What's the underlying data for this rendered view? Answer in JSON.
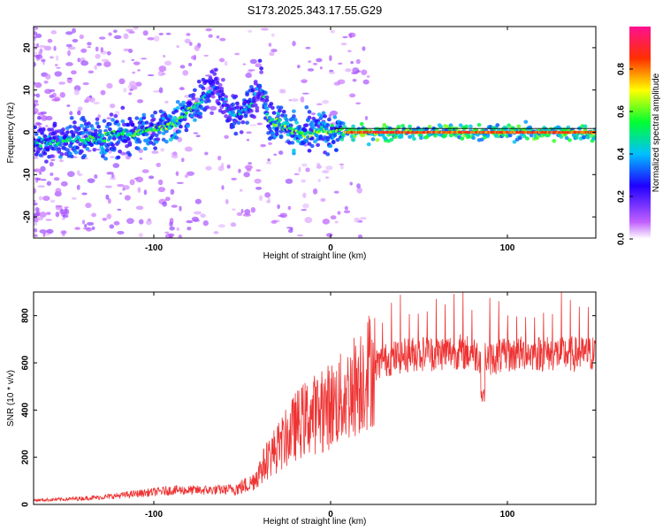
{
  "title": "S173.2025.343.17.55.G29",
  "chart_data": [
    {
      "type": "heatmap",
      "name": "spectrogram",
      "xlabel": "Height of straight line (km)",
      "ylabel": "Frequency (Hz)",
      "xlim": [
        -168,
        150
      ],
      "ylim": [
        -25,
        25
      ],
      "xticks": [
        -100,
        0,
        100
      ],
      "yticks": [
        -20,
        -10,
        0,
        10,
        20
      ],
      "colorbar": {
        "label": "Normalized spectral amplitude",
        "range": [
          0,
          1
        ],
        "ticks": [
          "0.0",
          "0.2",
          "0.4",
          "0.6",
          "0.8"
        ],
        "colors": [
          "#ffffff",
          "#c060ff",
          "#2000ff",
          "#00c0ff",
          "#00ff30",
          "#ffff00",
          "#ff3000",
          "#ff1090"
        ]
      },
      "ridge": [
        {
          "x": -160,
          "f": -2.3,
          "a": 0.45
        },
        {
          "x": -150,
          "f": -1.8,
          "a": 0.5
        },
        {
          "x": -140,
          "f": -1.6,
          "a": 0.5
        },
        {
          "x": -130,
          "f": -1.2,
          "a": 0.55
        },
        {
          "x": -120,
          "f": -0.5,
          "a": 0.5
        },
        {
          "x": -110,
          "f": 0.0,
          "a": 0.55
        },
        {
          "x": -100,
          "f": 0.5,
          "a": 0.5
        },
        {
          "x": -90,
          "f": 2.0,
          "a": 0.6
        },
        {
          "x": -80,
          "f": 5.0,
          "a": 0.55
        },
        {
          "x": -70,
          "f": 9.0,
          "a": 0.45
        },
        {
          "x": -65,
          "f": 10.5,
          "a": 0.3
        },
        {
          "x": -55,
          "f": 3.5,
          "a": 0.45
        },
        {
          "x": -45,
          "f": 6.5,
          "a": 0.45
        },
        {
          "x": -40,
          "f": 12.0,
          "a": 0.35
        },
        {
          "x": -35,
          "f": 3.0,
          "a": 0.55
        },
        {
          "x": -25,
          "f": 1.5,
          "a": 0.6
        },
        {
          "x": -15,
          "f": -1.0,
          "a": 0.6
        },
        {
          "x": -5,
          "f": 0.5,
          "a": 0.55
        },
        {
          "x": 5,
          "f": 0.0,
          "a": 0.55
        },
        {
          "x": 10,
          "f": 0.0,
          "a": 0.85
        },
        {
          "x": 30,
          "f": 0.0,
          "a": 0.9
        },
        {
          "x": 60,
          "f": 0.0,
          "a": 0.85
        },
        {
          "x": 90,
          "f": 0.0,
          "a": 0.85
        },
        {
          "x": 120,
          "f": 0.0,
          "a": 0.85
        },
        {
          "x": 150,
          "f": 0.0,
          "a": 0.85
        }
      ]
    },
    {
      "type": "line",
      "name": "snr",
      "xlabel": "Height of straight line (km)",
      "ylabel": "SNR (10 * v/v)",
      "xlim": [
        -168,
        150
      ],
      "ylim": [
        0,
        900
      ],
      "xticks": [
        -100,
        0,
        100
      ],
      "yticks": [
        0,
        200,
        400,
        600,
        800
      ],
      "color": "#ee3333",
      "series": [
        {
          "name": "SNR",
          "x": [
            -168,
            -150,
            -130,
            -110,
            -90,
            -75,
            -60,
            -52,
            -45,
            -40,
            -35,
            -30,
            -25,
            -20,
            -15,
            -10,
            -5,
            0,
            5,
            10,
            15,
            20,
            25,
            30,
            40,
            50,
            60,
            70,
            80,
            90,
            100,
            110,
            120,
            130,
            140,
            150
          ],
          "y": [
            18,
            22,
            30,
            45,
            60,
            60,
            62,
            70,
            90,
            140,
            200,
            240,
            280,
            330,
            360,
            380,
            395,
            420,
            440,
            470,
            520,
            560,
            590,
            610,
            630,
            640,
            640,
            650,
            640,
            620,
            630,
            640,
            640,
            640,
            635,
            640
          ]
        }
      ]
    }
  ]
}
